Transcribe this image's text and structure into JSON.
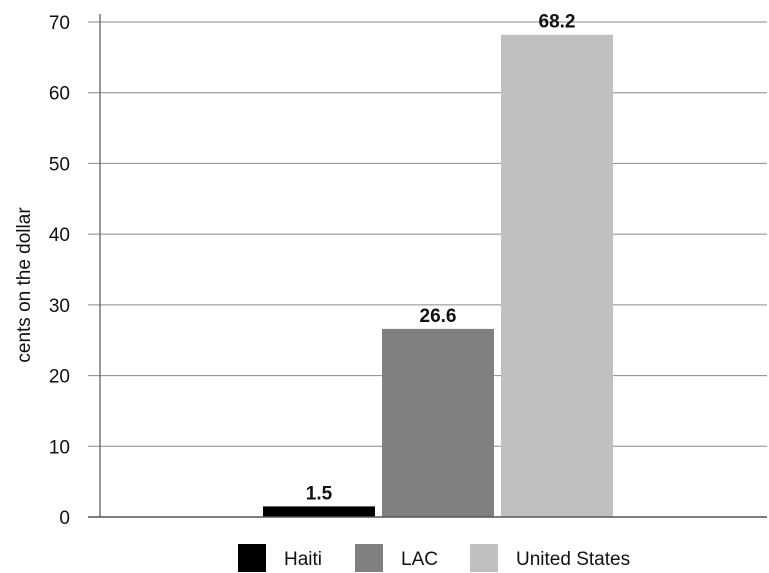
{
  "chart_data": {
    "type": "bar",
    "categories": [
      "Haiti",
      "LAC",
      "United States"
    ],
    "values": [
      1.5,
      26.6,
      68.2
    ],
    "data_labels": [
      "1.5",
      "26.6",
      "68.2"
    ],
    "colors": [
      "#000000",
      "#808080",
      "#c0c0c0"
    ],
    "title": "",
    "xlabel": "",
    "ylabel": "cents on the dollar",
    "ylim": [
      0,
      70
    ],
    "yticks": [
      0,
      10,
      20,
      30,
      40,
      50,
      60,
      70
    ],
    "grid": true,
    "legend": {
      "position": "bottom",
      "entries": [
        "Haiti",
        "LAC",
        "United States"
      ]
    }
  }
}
